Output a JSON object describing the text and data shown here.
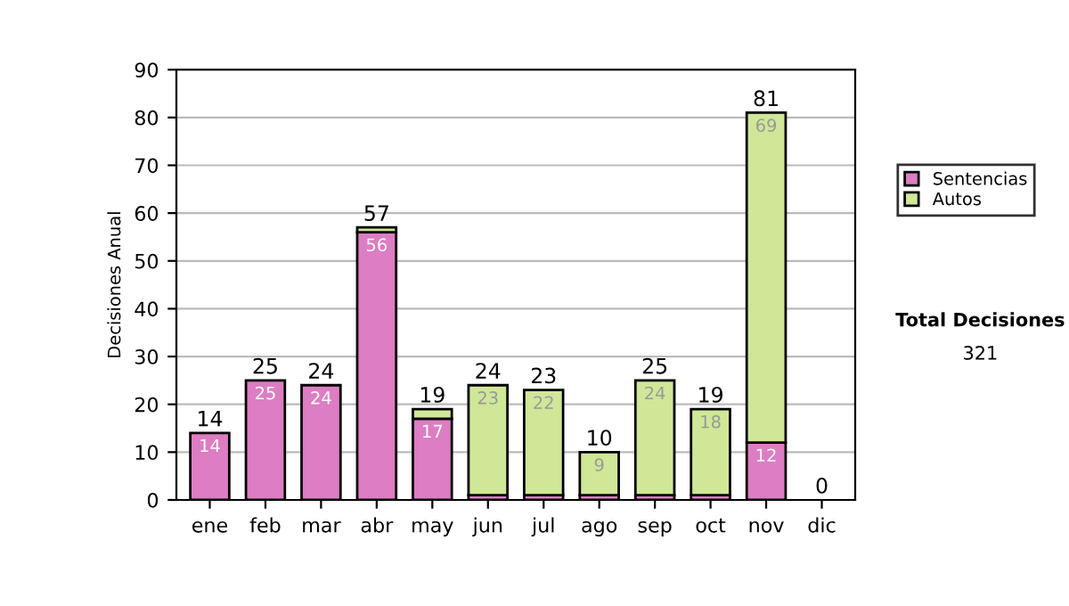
{
  "chart_data": {
    "type": "bar",
    "stacked": true,
    "ylabel": "Decisiones Anual",
    "categories": [
      "ene",
      "feb",
      "mar",
      "abr",
      "may",
      "jun",
      "jul",
      "ago",
      "sep",
      "oct",
      "nov",
      "dic"
    ],
    "series": [
      {
        "name": "Sentencias",
        "color": "#dd7dc3",
        "values": [
          14,
          25,
          24,
          56,
          17,
          1,
          1,
          1,
          1,
          1,
          12,
          0
        ],
        "value_labels": [
          "14",
          "25",
          "24",
          "56",
          "17",
          null,
          null,
          null,
          null,
          null,
          "12",
          null
        ]
      },
      {
        "name": "Autos",
        "color": "#cfe797",
        "values": [
          0,
          0,
          0,
          1,
          2,
          23,
          22,
          9,
          24,
          18,
          69,
          0
        ],
        "value_labels": [
          null,
          null,
          null,
          null,
          null,
          "23",
          "22",
          "9",
          "24",
          "18",
          "69",
          null
        ]
      }
    ],
    "totals": [
      "14",
      "25",
      "24",
      "57",
      "19",
      "24",
      "23",
      "10",
      "25",
      "19",
      "81",
      "0"
    ],
    "ylim": [
      0,
      90
    ],
    "yticks": [
      0,
      10,
      20,
      30,
      40,
      50,
      60,
      70,
      80,
      90
    ],
    "grid": "y",
    "legend": "right",
    "annotations": [
      "Total Decisiones",
      "321"
    ]
  }
}
